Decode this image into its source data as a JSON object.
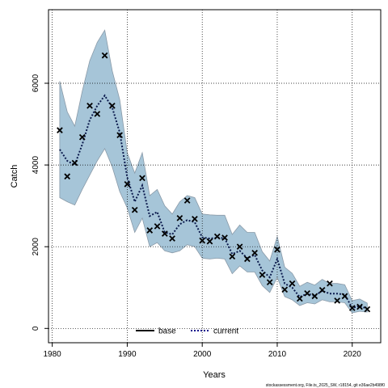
{
  "chart_data": {
    "type": "line",
    "title": "",
    "xlabel": "Years",
    "ylabel": "Catch",
    "xlim": [
      1979.5,
      2023.8
    ],
    "ylim": [
      -350,
      7800
    ],
    "x_ticks": [
      1980,
      1990,
      2000,
      2010,
      2020
    ],
    "y_ticks": [
      0,
      2000,
      4000,
      6000
    ],
    "grid": true,
    "legend_position": "bottom-center",
    "legend": [
      {
        "label": "base",
        "style": "solid",
        "color": "#000000"
      },
      {
        "label": "current",
        "style": "dotted",
        "color": "#00008b"
      }
    ],
    "colors": {
      "band_fill": "#a6c5d8",
      "band_stroke": "#8a9aa8",
      "current_line": "#0b1a4d",
      "observed_marker": "#000000",
      "grid": "#000000"
    },
    "years": [
      1981,
      1982,
      1983,
      1984,
      1985,
      1986,
      1987,
      1988,
      1989,
      1990,
      1991,
      1992,
      1993,
      1994,
      1995,
      1996,
      1997,
      1998,
      1999,
      2000,
      2001,
      2002,
      2003,
      2004,
      2005,
      2006,
      2007,
      2008,
      2009,
      2010,
      2011,
      2012,
      2013,
      2014,
      2015,
      2016,
      2017,
      2018,
      2019,
      2020,
      2021,
      2022
    ],
    "observed": [
      4850,
      3720,
      4050,
      4680,
      5450,
      5250,
      6680,
      5450,
      4730,
      3530,
      2900,
      3680,
      2400,
      2500,
      2320,
      2200,
      2700,
      3130,
      2680,
      2150,
      2130,
      2250,
      2220,
      1760,
      2000,
      1700,
      1850,
      1310,
      1130,
      1930,
      950,
      1100,
      730,
      860,
      790,
      940,
      1100,
      680,
      790,
      500,
      530,
      470
    ],
    "series": [
      {
        "name": "current",
        "values": [
          4380,
          4100,
          4000,
          4500,
          5100,
          5450,
          5700,
          5400,
          4800,
          3700,
          3100,
          3500,
          2750,
          2850,
          2350,
          2300,
          2550,
          2650,
          2600,
          2230,
          2200,
          2220,
          2210,
          1820,
          1900,
          1720,
          1800,
          1420,
          1250,
          1700,
          1100,
          1000,
          770,
          850,
          800,
          920,
          850,
          850,
          830,
          500,
          550,
          480
        ]
      }
    ],
    "band": {
      "name": "uncertainty interval",
      "lower": [
        3200,
        3100,
        3020,
        3400,
        3750,
        4100,
        4400,
        3950,
        3350,
        2950,
        2350,
        2700,
        2000,
        2100,
        1900,
        1850,
        1900,
        2050,
        2000,
        1720,
        1700,
        1720,
        1700,
        1340,
        1530,
        1380,
        1380,
        1050,
        880,
        1250,
        780,
        700,
        560,
        630,
        600,
        700,
        650,
        650,
        630,
        380,
        420,
        400
      ],
      "upper": [
        6050,
        5300,
        4950,
        5800,
        6550,
        7000,
        7300,
        6300,
        5600,
        4300,
        3800,
        4300,
        3250,
        3400,
        3000,
        2800,
        3100,
        3250,
        3200,
        2800,
        2780,
        2770,
        2770,
        2300,
        2530,
        2350,
        2350,
        1880,
        1650,
        2250,
        1500,
        1350,
        1030,
        1130,
        1060,
        1200,
        1100,
        1100,
        1070,
        680,
        720,
        620
      ]
    },
    "footer_note": "stockassessment.org, File.ts_2025_SW, r18154, git e36ae2b498f0"
  }
}
